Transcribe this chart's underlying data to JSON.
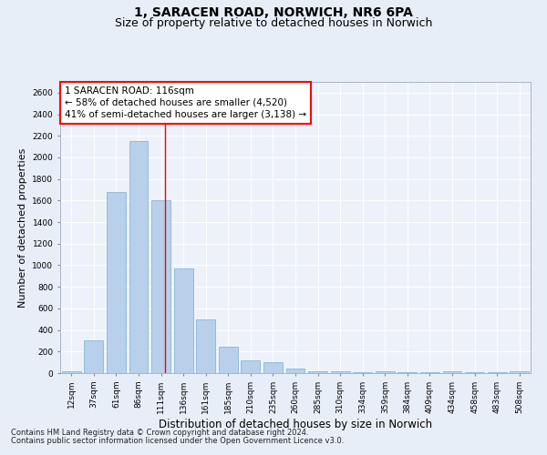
{
  "title_line1": "1, SARACEN ROAD, NORWICH, NR6 6PA",
  "title_line2": "Size of property relative to detached houses in Norwich",
  "xlabel": "Distribution of detached houses by size in Norwich",
  "ylabel": "Number of detached properties",
  "categories": [
    "12sqm",
    "37sqm",
    "61sqm",
    "86sqm",
    "111sqm",
    "136sqm",
    "161sqm",
    "185sqm",
    "210sqm",
    "235sqm",
    "260sqm",
    "285sqm",
    "310sqm",
    "334sqm",
    "359sqm",
    "384sqm",
    "409sqm",
    "434sqm",
    "458sqm",
    "483sqm",
    "508sqm"
  ],
  "values": [
    20,
    300,
    1675,
    2150,
    1600,
    970,
    500,
    245,
    120,
    100,
    45,
    20,
    15,
    10,
    20,
    5,
    5,
    20,
    5,
    5,
    20
  ],
  "bar_color": "#b8d0ea",
  "bar_edge_color": "#7aafd4",
  "annotation_line1": "1 SARACEN ROAD: 116sqm",
  "annotation_line2": "← 58% of detached houses are smaller (4,520)",
  "annotation_line3": "41% of semi-detached houses are larger (3,138) →",
  "vline_index": 4.18,
  "ylim": [
    0,
    2700
  ],
  "yticks": [
    0,
    200,
    400,
    600,
    800,
    1000,
    1200,
    1400,
    1600,
    1800,
    2000,
    2200,
    2400,
    2600
  ],
  "footer_line1": "Contains HM Land Registry data © Crown copyright and database right 2024.",
  "footer_line2": "Contains public sector information licensed under the Open Government Licence v3.0.",
  "bg_color": "#e8eef8",
  "plot_bg_color": "#edf2fa",
  "grid_color": "#ffffff",
  "title_fontsize": 10,
  "subtitle_fontsize": 9,
  "xlabel_fontsize": 8.5,
  "ylabel_fontsize": 8,
  "tick_fontsize": 6.5,
  "footer_fontsize": 6,
  "annotation_fontsize": 7.5
}
